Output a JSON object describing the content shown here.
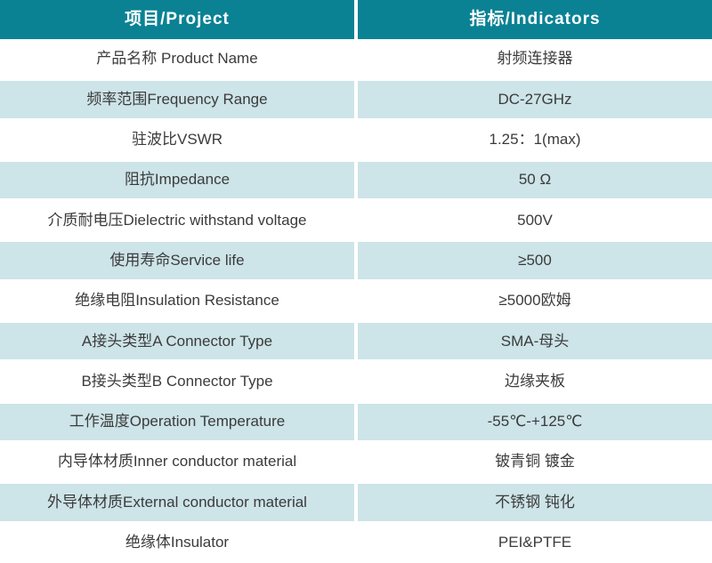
{
  "table": {
    "header": {
      "col1": "项目/Project",
      "col2": "指标/Indicators"
    },
    "rows": [
      {
        "project": "产品名称 Product Name",
        "indicator": "射频连接器"
      },
      {
        "project": "频率范围Frequency Range",
        "indicator": "DC-27GHz"
      },
      {
        "project": "驻波比VSWR",
        "indicator": "1.25：1(max)"
      },
      {
        "project": "阻抗Impedance",
        "indicator": "50 Ω"
      },
      {
        "project": "介质耐电压Dielectric withstand voltage",
        "indicator": "500V"
      },
      {
        "project": "使用寿命Service life",
        "indicator": "≥500"
      },
      {
        "project": "绝缘电阻Insulation Resistance",
        "indicator": "≥5000欧姆"
      },
      {
        "project": "A接头类型A Connector Type",
        "indicator": "SMA-母头"
      },
      {
        "project": "B接头类型B Connector Type",
        "indicator": "边缘夹板"
      },
      {
        "project": "工作温度Operation Temperature",
        "indicator": "-55℃-+125℃"
      },
      {
        "project": "内导体材质Inner conductor material",
        "indicator": "铍青铜 镀金"
      },
      {
        "project": "外导体材质External conductor material",
        "indicator": "不锈钢 钝化"
      },
      {
        "project": "绝缘体Insulator",
        "indicator": "PEI&PTFE"
      }
    ]
  },
  "colors": {
    "header_bg": "#0a8294",
    "alt_row_bg": "#cde4e8",
    "header_text": "#ffffff",
    "body_text": "#3b3b3b",
    "divider": "#ffffff"
  }
}
